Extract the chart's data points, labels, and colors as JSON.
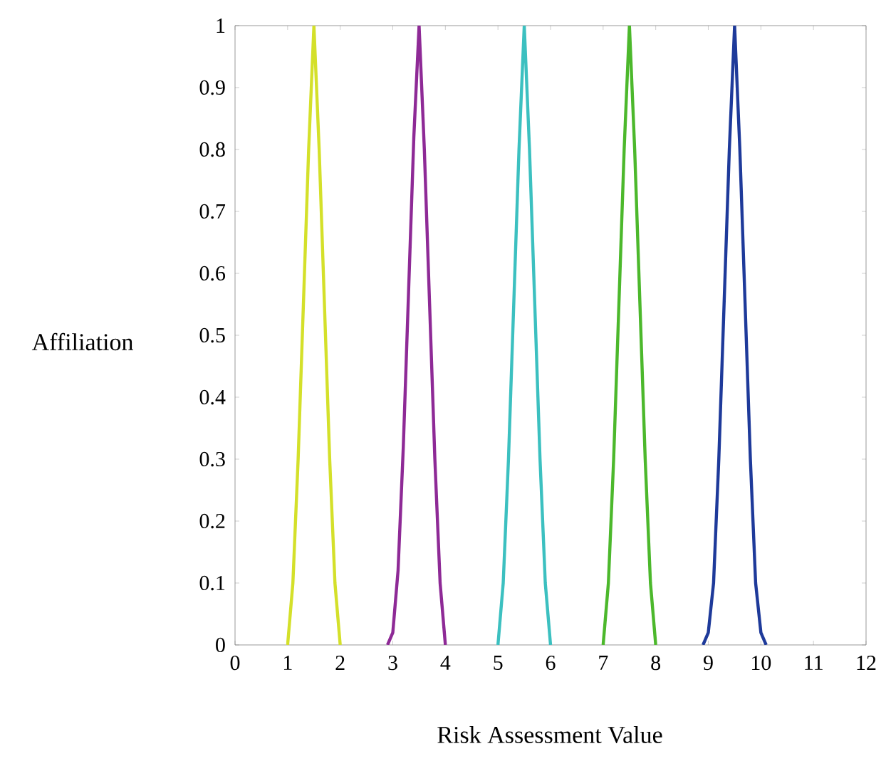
{
  "chart_data": {
    "type": "line",
    "xlabel": "Risk Assessment Value",
    "ylabel": "Affiliation",
    "xlim": [
      0,
      12
    ],
    "ylim": [
      0,
      1
    ],
    "xticks": [
      0,
      1,
      2,
      3,
      4,
      5,
      6,
      7,
      8,
      9,
      10,
      11,
      12
    ],
    "yticks": [
      0,
      0.1,
      0.2,
      0.3,
      0.4,
      0.5,
      0.6,
      0.7,
      0.8,
      0.9,
      1
    ],
    "marker": "none",
    "line_style": "solid",
    "series": [
      {
        "color": "#d4e02a",
        "x": [
          1.0,
          1.1,
          1.2,
          1.3,
          1.4,
          1.5,
          1.6,
          1.7,
          1.8,
          1.9,
          2.0
        ],
        "values": [
          0,
          0.1,
          0.3,
          0.55,
          0.8,
          1,
          0.8,
          0.55,
          0.3,
          0.1,
          0
        ]
      },
      {
        "color": "#8e2a96",
        "x": [
          2.9,
          3.0,
          3.1,
          3.2,
          3.3,
          3.4,
          3.5,
          3.6,
          3.7,
          3.8,
          3.9,
          4.0
        ],
        "values": [
          0,
          0.02,
          0.12,
          0.32,
          0.57,
          0.82,
          1,
          0.8,
          0.55,
          0.3,
          0.1,
          0
        ]
      },
      {
        "color": "#3cc0c0",
        "x": [
          5.0,
          5.1,
          5.2,
          5.3,
          5.4,
          5.5,
          5.6,
          5.7,
          5.8,
          5.9,
          6.0
        ],
        "values": [
          0,
          0.1,
          0.3,
          0.55,
          0.8,
          1,
          0.8,
          0.55,
          0.3,
          0.1,
          0
        ]
      },
      {
        "color": "#4cb82c",
        "x": [
          7.0,
          7.1,
          7.2,
          7.3,
          7.4,
          7.5,
          7.6,
          7.7,
          7.8,
          7.9,
          8.0
        ],
        "values": [
          0,
          0.1,
          0.3,
          0.55,
          0.8,
          1,
          0.8,
          0.55,
          0.3,
          0.1,
          0
        ]
      },
      {
        "color": "#1e3a9a",
        "x": [
          8.9,
          9.0,
          9.1,
          9.2,
          9.3,
          9.4,
          9.5,
          9.6,
          9.7,
          9.8,
          9.9,
          10.0,
          10.1
        ],
        "values": [
          0,
          0.02,
          0.1,
          0.3,
          0.55,
          0.8,
          1,
          0.8,
          0.55,
          0.3,
          0.1,
          0.02,
          0
        ]
      }
    ]
  }
}
